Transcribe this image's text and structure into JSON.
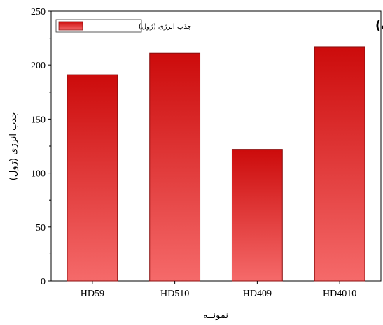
{
  "chart_data": {
    "type": "bar",
    "categories": [
      "HD59",
      "HD510",
      "HD409",
      "HD4010"
    ],
    "series": [
      {
        "name": "جذب انرژی (ژول)",
        "values": [
          191,
          211,
          122,
          217
        ]
      }
    ],
    "xlabel": "نمونــه",
    "ylabel": "جذب انرژی (ژول)",
    "ylim": [
      0,
      250
    ],
    "yticks": [
      0,
      50,
      100,
      150,
      200,
      250
    ],
    "panel_label": "(پ)",
    "legend_position": "top-left",
    "grid": false,
    "colors": {
      "bar_top": "#cc0b0b",
      "bar_bottom": "#f56a6a",
      "bar_border": "#8a0d0d"
    }
  }
}
